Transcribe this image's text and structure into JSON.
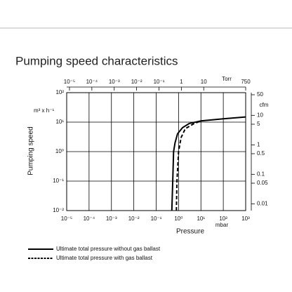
{
  "chart_data": {
    "type": "line",
    "title": "Pumping speed characteristics",
    "xlabel": "Pressure",
    "xunit": "mbar",
    "ylabel": "Pumping speed",
    "yunit": "m³ x h⁻¹",
    "x2unit": "Torr",
    "y2unit": "cfm",
    "xscale": "log",
    "yscale": "log",
    "grid": true,
    "xlim": [
      1e-05,
      1000
    ],
    "xticks": [
      {
        "value": 1e-05,
        "label": "10⁻⁵"
      },
      {
        "value": 0.0001,
        "label": "10⁻⁴"
      },
      {
        "value": 0.001,
        "label": "10⁻³"
      },
      {
        "value": 0.01,
        "label": "10⁻²"
      },
      {
        "value": 0.1,
        "label": "10⁻¹"
      },
      {
        "value": 1,
        "label": "10⁰"
      },
      {
        "value": 10,
        "label": "10¹"
      },
      {
        "value": 100,
        "label": "10²"
      },
      {
        "value": 1000,
        "label": "10³"
      }
    ],
    "ylim": [
      0.01,
      100
    ],
    "yticks": [
      {
        "value": 0.01,
        "label": "10⁻²"
      },
      {
        "value": 0.1,
        "label": "10⁻¹"
      },
      {
        "value": 1,
        "label": "10⁰"
      },
      {
        "value": 10,
        "label": "10¹"
      },
      {
        "value": 100,
        "label": "10²"
      }
    ],
    "x2lim": [
      7.5e-06,
      750
    ],
    "x2ticks": [
      {
        "value": 1e-05,
        "label": "10⁻⁵"
      },
      {
        "value": 0.0001,
        "label": "10⁻⁴"
      },
      {
        "value": 0.001,
        "label": "10⁻³"
      },
      {
        "value": 0.01,
        "label": "10⁻²"
      },
      {
        "value": 0.1,
        "label": "10⁻¹"
      },
      1,
      10,
      750
    ],
    "y2lim": [
      0.005886,
      58.86
    ],
    "y2ticks": [
      0.01,
      0.05,
      0.1,
      0.5,
      1,
      5,
      10,
      50
    ],
    "series": [
      {
        "name": "Ultimate total pressure without gas ballast",
        "color": "#000000",
        "dash": false,
        "x": [
          0.5,
          0.55,
          0.6,
          0.7,
          0.9,
          1.5,
          3,
          10,
          100,
          1000
        ],
        "values": [
          0.01,
          0.1,
          1,
          2,
          4,
          6.5,
          9,
          11,
          13,
          15
        ]
      },
      {
        "name": "Ultimate total pressure with gas ballast",
        "color": "#000000",
        "dash": true,
        "x": [
          0.8,
          0.85,
          1,
          1.3,
          2,
          5,
          10
        ],
        "values": [
          0.01,
          0.1,
          1,
          3,
          6,
          9,
          11
        ]
      }
    ]
  }
}
